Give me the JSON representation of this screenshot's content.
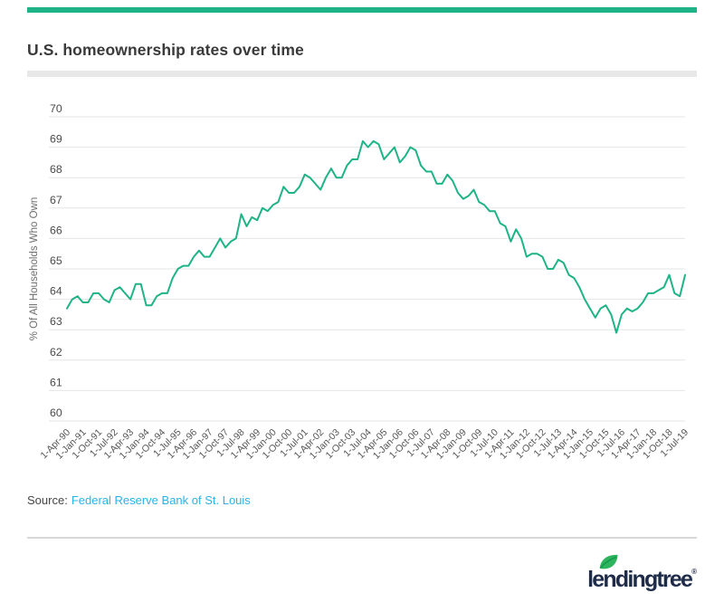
{
  "header": {
    "title": "U.S. homeownership rates over time"
  },
  "brand": {
    "accent_green": "#1fb487",
    "navy": "#1e2b49",
    "link_blue": "#2bb3e6",
    "leaf_green": "#2eb45c",
    "leaf_vein_green": "#13994f",
    "logo_text": "lendingtree",
    "registered_mark": "®"
  },
  "source": {
    "prefix": "Source:",
    "link_text": "Federal Reserve Bank of St. Louis"
  },
  "chart_data": {
    "type": "line",
    "title": "U.S. homeownership rates over time",
    "ylabel": "% Of All Households Who Own",
    "xlabel": "",
    "ylim": [
      60,
      70
    ],
    "yticks": [
      70,
      69,
      68,
      67,
      66,
      65,
      64,
      63,
      62,
      61,
      60
    ],
    "grid": true,
    "legend": "none",
    "line_color": "#1fb487",
    "x_frequency": "quarterly",
    "x_start": "1-Apr-90",
    "x_end": "1-Jul-19",
    "x_tick_every": 3,
    "x_tick_labels": [
      "1-Apr-90",
      "1-Jan-91",
      "1-Oct-91",
      "1-Jul-92",
      "1-Apr-93",
      "1-Jan-94",
      "1-Oct-94",
      "1-Jul-95",
      "1-Apr-96",
      "1-Jan-97",
      "1-Oct-97",
      "1-Jul-98",
      "1-Apr-99",
      "1-Jan-00",
      "1-Oct-00",
      "1-Jul-01",
      "1-Apr-02",
      "1-Jan-03",
      "1-Oct-03",
      "1-Jul-04",
      "1-Apr-05",
      "1-Jan-06",
      "1-Oct-06",
      "1-Jul-07",
      "1-Apr-08",
      "1-Jan-09",
      "1-Oct-09",
      "1-Jul-10",
      "1-Apr-11",
      "1-Jan-12",
      "1-Oct-12",
      "1-Jul-13",
      "1-Apr-14",
      "1-Jan-15",
      "1-Oct-15",
      "1-Jul-16",
      "1-Apr-17",
      "1-Jan-18",
      "1-Oct-18",
      "1-Jul-19"
    ],
    "values": [
      63.7,
      64.0,
      64.1,
      63.9,
      63.9,
      64.2,
      64.2,
      64.0,
      63.9,
      64.3,
      64.4,
      64.2,
      64.0,
      64.5,
      64.5,
      63.8,
      63.8,
      64.1,
      64.2,
      64.2,
      64.7,
      65.0,
      65.1,
      65.1,
      65.4,
      65.6,
      65.4,
      65.4,
      65.7,
      66.0,
      65.7,
      65.9,
      66.0,
      66.8,
      66.4,
      66.7,
      66.6,
      67.0,
      66.9,
      67.1,
      67.2,
      67.7,
      67.5,
      67.5,
      67.7,
      68.1,
      68.0,
      67.8,
      67.6,
      68.0,
      68.3,
      68.0,
      68.0,
      68.4,
      68.6,
      68.6,
      69.2,
      69.0,
      69.2,
      69.1,
      68.6,
      68.8,
      69.0,
      68.5,
      68.7,
      69.0,
      68.9,
      68.4,
      68.2,
      68.2,
      67.8,
      67.8,
      68.1,
      67.9,
      67.5,
      67.3,
      67.4,
      67.6,
      67.2,
      67.1,
      66.9,
      66.9,
      66.5,
      66.4,
      65.9,
      66.3,
      66.0,
      65.4,
      65.5,
      65.5,
      65.4,
      65.0,
      65.0,
      65.3,
      65.2,
      64.8,
      64.7,
      64.4,
      64.0,
      63.7,
      63.4,
      63.7,
      63.8,
      63.5,
      62.9,
      63.5,
      63.7,
      63.6,
      63.7,
      63.9,
      64.2,
      64.2,
      64.3,
      64.4,
      64.8,
      64.2,
      64.1,
      64.8
    ]
  }
}
